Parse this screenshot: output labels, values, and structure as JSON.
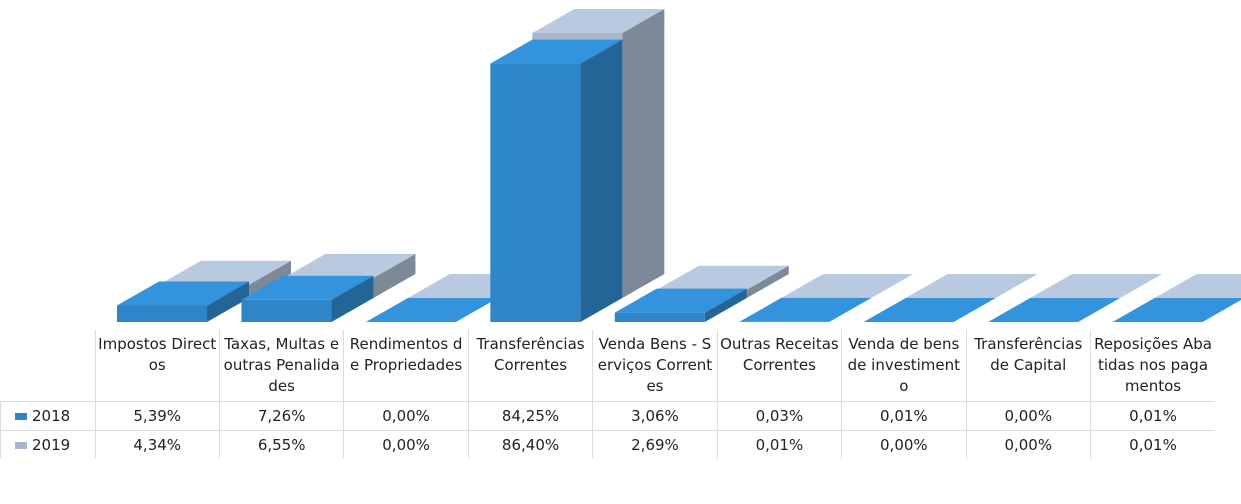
{
  "chart_data": {
    "type": "bar3d",
    "categories": [
      "Impostos Directos",
      "Taxas, Multas e outras Penalidades",
      "Rendimentos de Propriedades",
      "Transferências Correntes",
      "Venda Bens - Serviços Correntes",
      "Outras Receitas Correntes",
      "Venda de bens de investimento",
      "Transferências de Capital",
      "Reposições Abatidas nos pagamentos"
    ],
    "series": [
      {
        "name": "2018",
        "color": "#2e86c9",
        "values": [
          5.39,
          7.26,
          0,
          84.25,
          3.06,
          0.03,
          0.01,
          0,
          0.01
        ],
        "value_labels": [
          "5,39%",
          "7,26%",
          "0,00%",
          "84,25%",
          "3,06%",
          "0,03%",
          "0,01%",
          "0,00%",
          "0,01%"
        ]
      },
      {
        "name": "2019",
        "color": "#a8b7cb",
        "values": [
          4.34,
          6.55,
          0,
          86.4,
          2.69,
          0.01,
          0,
          0,
          0.01
        ],
        "value_labels": [
          "4,34%",
          "6,55%",
          "0,00%",
          "86,40%",
          "2,69%",
          "0,01%",
          "0,00%",
          "0,00%",
          "0,01%"
        ]
      }
    ]
  }
}
